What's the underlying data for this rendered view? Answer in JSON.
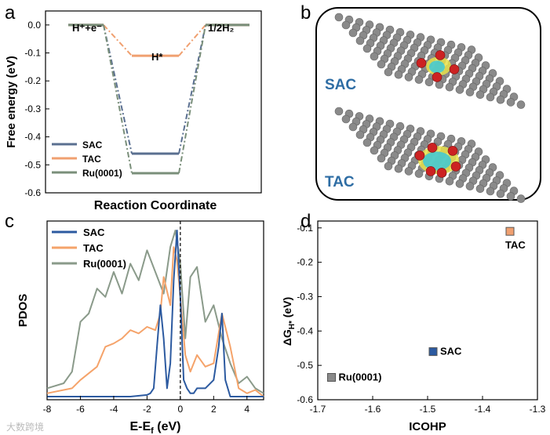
{
  "colors": {
    "sac": "#5a6f90",
    "tac": "#f0a070",
    "ru": "#7a8f7a",
    "sac_pdos": "#2c5aa0",
    "tac_pdos": "#f5a36a",
    "ru_pdos": "#8a9a8a",
    "accent_text": "#2e6da4",
    "atom_gray": "#8a8a8a",
    "atom_red": "#cc2222",
    "iso_yellow": "#e8e04a",
    "iso_cyan": "#3cc8d8"
  },
  "watermark": "大数跨境",
  "chart_data": [
    {
      "panel": "a",
      "type": "line",
      "title": "",
      "xlabel": "Reaction Coordinate",
      "ylabel": "Free energy (eV)",
      "ylim": [
        -0.6,
        0.05
      ],
      "yticks": [
        "0.0",
        "-0.1",
        "-0.2",
        "-0.3",
        "-0.4",
        "-0.5",
        "-0.6"
      ],
      "ytick_values": [
        0.0,
        -0.1,
        -0.2,
        -0.3,
        -0.4,
        -0.5,
        -0.6
      ],
      "states": [
        "H⁺+e⁻",
        "H*",
        "1/2H₂"
      ],
      "series": [
        {
          "name": "SAC",
          "values": [
            0.0,
            -0.46,
            0.0
          ]
        },
        {
          "name": "TAC",
          "values": [
            0.0,
            -0.11,
            0.0
          ]
        },
        {
          "name": "Ru(0001)",
          "values": [
            0.0,
            -0.53,
            0.0
          ]
        }
      ],
      "legend": [
        "SAC",
        "TAC",
        "Ru(0001)"
      ]
    },
    {
      "panel": "c",
      "type": "line",
      "xlabel": "E-Ef (eV)",
      "ylabel": "PDOS",
      "xlim": [
        -8,
        5
      ],
      "xticks": [
        "-8",
        "-6",
        "-4",
        "-2",
        "0",
        "2",
        "4"
      ],
      "xtick_values": [
        -8,
        -6,
        -4,
        -2,
        0,
        2,
        4
      ],
      "legend": [
        "SAC",
        "TAC",
        "Ru(0001)"
      ],
      "series": [
        {
          "name": "SAC",
          "x": [
            -8,
            -6,
            -4,
            -3,
            -2,
            -1.8,
            -1.6,
            -1.4,
            -1.2,
            -1.0,
            -0.8,
            -0.6,
            -0.4,
            -0.2,
            0,
            0.2,
            0.4,
            0.6,
            0.8,
            1.0,
            1.5,
            2.0,
            2.3,
            2.5,
            2.7,
            3.0,
            4,
            5
          ],
          "values": [
            0,
            0,
            0,
            0,
            0.01,
            0.02,
            0.05,
            0.3,
            0.55,
            0.35,
            0.05,
            0.2,
            0.7,
            1.0,
            0.6,
            0.1,
            0.05,
            0.02,
            0.02,
            0.05,
            0.05,
            0.1,
            0.3,
            0.5,
            0.1,
            0,
            0,
            0
          ]
        },
        {
          "name": "TAC",
          "x": [
            -8,
            -6.5,
            -6,
            -5,
            -4.5,
            -4,
            -3.5,
            -3,
            -2.5,
            -2,
            -1.5,
            -1.2,
            -1,
            -0.6,
            -0.4,
            -0.2,
            0,
            0.3,
            0.6,
            1,
            1.5,
            2,
            2.5,
            3,
            3.5,
            4,
            4.5,
            5
          ],
          "values": [
            0.02,
            0.05,
            0.1,
            0.18,
            0.3,
            0.32,
            0.35,
            0.4,
            0.38,
            0.42,
            0.4,
            0.5,
            0.72,
            0.55,
            0.9,
            0.82,
            0.6,
            0.25,
            0.15,
            0.25,
            0.18,
            0.2,
            0.5,
            0.3,
            0.05,
            0.02,
            0.04,
            0.0
          ]
        },
        {
          "name": "Ru(0001)",
          "x": [
            -8,
            -7,
            -6.5,
            -6,
            -5.5,
            -5,
            -4.5,
            -4,
            -3.5,
            -3,
            -2.5,
            -2,
            -1.5,
            -1,
            -0.6,
            -0.3,
            0,
            0.3,
            0.6,
            1,
            1.5,
            2,
            2.5,
            3,
            3.5,
            4,
            4.5,
            5
          ],
          "values": [
            0.05,
            0.08,
            0.15,
            0.45,
            0.5,
            0.65,
            0.6,
            0.75,
            0.62,
            0.8,
            0.7,
            0.88,
            0.75,
            0.62,
            0.9,
            1.0,
            0.8,
            0.35,
            0.72,
            0.78,
            0.45,
            0.55,
            0.35,
            0.2,
            0.08,
            0.12,
            0.05,
            0.02
          ]
        }
      ]
    },
    {
      "panel": "d",
      "type": "scatter",
      "xlabel": "ICOHP",
      "ylabel": "ΔGH* (eV)",
      "xlim": [
        -1.7,
        -1.3
      ],
      "ylim": [
        -0.6,
        -0.08
      ],
      "xticks": [
        "-1.7",
        "-1.6",
        "-1.5",
        "-1.4",
        "-1.3"
      ],
      "xtick_values": [
        -1.7,
        -1.6,
        -1.5,
        -1.4,
        -1.3
      ],
      "yticks": [
        "-0.1",
        "-0.2",
        "-0.3",
        "-0.4",
        "-0.5",
        "-0.6"
      ],
      "ytick_values": [
        -0.1,
        -0.2,
        -0.3,
        -0.4,
        -0.5,
        -0.6
      ],
      "points": [
        {
          "name": "TAC",
          "x": -1.35,
          "y": -0.11
        },
        {
          "name": "SAC",
          "x": -1.49,
          "y": -0.46
        },
        {
          "name": "Ru(0001)",
          "x": -1.675,
          "y": -0.535
        }
      ]
    }
  ],
  "panel_b": {
    "labels": [
      "SAC",
      "TAC"
    ]
  },
  "panel_letters": [
    "a",
    "b",
    "c",
    "d"
  ]
}
